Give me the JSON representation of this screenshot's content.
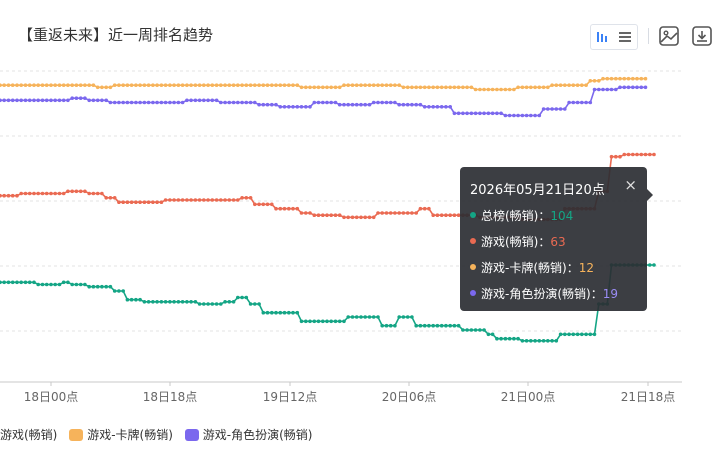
{
  "title": "【重返未来】近一周排名趋势",
  "toolbar": {
    "icons": [
      "bar-chart-icon",
      "list-icon",
      "image-icon",
      "download-icon"
    ]
  },
  "colors": {
    "zongbang": "#14a585",
    "youxi": "#ea6a52",
    "kapai": "#f6b35b",
    "juese": "#7b68ee",
    "accent": "#3b82f6"
  },
  "tooltip": {
    "title": "2026年05月21日20点",
    "close": "×",
    "rows": [
      {
        "label": "总榜(畅销)：",
        "value": "104",
        "color": "#14a585"
      },
      {
        "label": "游戏(畅销)：",
        "value": "63",
        "color": "#ea6a52"
      },
      {
        "label": "游戏-卡牌(畅销)：",
        "value": "12",
        "color": "#f6b35b"
      },
      {
        "label": "游戏-角色扮演(畅销)：",
        "value": "19",
        "color": "#7b68ee"
      }
    ]
  },
  "legend": [
    {
      "label": "游戏(畅销)",
      "color": "#ea6a52"
    },
    {
      "label": "游戏-卡牌(畅销)",
      "color": "#f6b35b"
    },
    {
      "label": "游戏-角色扮演(畅销)",
      "color": "#7b68ee"
    }
  ],
  "chart_data": {
    "type": "line",
    "x_ticks": [
      "18日00点",
      "18日18点",
      "19日12点",
      "20日06点",
      "21日00点",
      "21日18点"
    ],
    "y_inverted": true,
    "ylim": [
      0,
      150
    ],
    "grid": true,
    "legend_position": "bottom",
    "series": [
      {
        "name": "总榜(畅销)",
        "color": "#14a585",
        "values": [
          104,
          104,
          104,
          104,
          104,
          104,
          104,
          104,
          104,
          105,
          105,
          105,
          105,
          105,
          105,
          104,
          104,
          105,
          105,
          105,
          105,
          106,
          106,
          106,
          106,
          106,
          106,
          108,
          108,
          108,
          112,
          112,
          112,
          112,
          113,
          113,
          113,
          113,
          113,
          113,
          113,
          113,
          113,
          113,
          113,
          113,
          113,
          114,
          114,
          114,
          114,
          114,
          114,
          113,
          113,
          113,
          111,
          111,
          111,
          114,
          114,
          114,
          118,
          118,
          118,
          118,
          118,
          118,
          118,
          118,
          118,
          122,
          122,
          122,
          122,
          122,
          122,
          122,
          122,
          122,
          122,
          122,
          120,
          120,
          120,
          120,
          120,
          120,
          120,
          120,
          124,
          124,
          124,
          124,
          120,
          120,
          120,
          120,
          124,
          124,
          124,
          124,
          124,
          124,
          124,
          124,
          124,
          124,
          124,
          126,
          126,
          126,
          126,
          126,
          126,
          128,
          128,
          130,
          130,
          130,
          130,
          130,
          130,
          131,
          131,
          131,
          131,
          131,
          131,
          131,
          131,
          131,
          128,
          128,
          128,
          128,
          128,
          128,
          128,
          128,
          128,
          114,
          114,
          114,
          96,
          96,
          96,
          96,
          96,
          96,
          96,
          96,
          96,
          96,
          96
        ]
      },
      {
        "name": "游戏(畅销)",
        "color": "#ea6a52",
        "values": [
          64,
          64,
          64,
          64,
          64,
          63,
          63,
          63,
          63,
          63,
          63,
          63,
          63,
          63,
          63,
          63,
          62,
          62,
          62,
          62,
          62,
          63,
          63,
          63,
          63,
          65,
          65,
          65,
          67,
          67,
          67,
          67,
          67,
          67,
          67,
          67,
          67,
          67,
          67,
          66,
          66,
          66,
          66,
          66,
          66,
          66,
          66,
          66,
          66,
          66,
          66,
          66,
          66,
          66,
          66,
          66,
          66,
          65,
          65,
          65,
          68,
          68,
          68,
          68,
          68,
          70,
          70,
          70,
          70,
          70,
          70,
          72,
          72,
          72,
          73,
          73,
          73,
          73,
          73,
          73,
          73,
          74,
          74,
          74,
          74,
          74,
          74,
          74,
          74,
          72,
          72,
          72,
          72,
          72,
          72,
          72,
          72,
          72,
          72,
          70,
          70,
          70,
          73,
          73,
          73,
          73,
          73,
          73,
          73,
          73,
          73,
          73,
          73,
          74,
          74,
          74,
          74,
          74,
          74,
          74,
          74,
          74,
          74,
          75,
          75,
          75,
          75,
          75,
          75,
          75,
          75,
          75,
          75,
          70,
          70,
          70,
          70,
          70,
          70,
          70,
          70,
          62,
          62,
          62,
          46,
          46,
          46,
          45,
          45,
          45,
          45,
          45,
          45,
          45,
          45
        ]
      },
      {
        "name": "游戏-卡牌(畅销)",
        "color": "#f6b35b",
        "values": [
          13,
          13,
          13,
          13,
          13,
          13,
          13,
          13,
          13,
          13,
          13,
          13,
          13,
          13,
          13,
          13,
          13,
          13,
          13,
          13,
          13,
          13,
          13,
          14,
          14,
          14,
          14,
          13,
          13,
          13,
          13,
          13,
          13,
          13,
          13,
          13,
          13,
          13,
          13,
          13,
          13,
          13,
          13,
          13,
          13,
          13,
          13,
          13,
          13,
          13,
          13,
          13,
          13,
          13,
          13,
          13,
          13,
          13,
          13,
          13,
          13,
          13,
          13,
          13,
          13,
          13,
          13,
          13,
          13,
          13,
          13,
          14,
          14,
          14,
          14,
          14,
          14,
          14,
          14,
          14,
          14,
          13,
          13,
          13,
          13,
          13,
          13,
          13,
          13,
          13,
          13,
          13,
          13,
          13,
          13,
          14,
          14,
          14,
          14,
          14,
          14,
          14,
          14,
          14,
          14,
          14,
          14,
          14,
          14,
          14,
          14,
          14,
          15,
          15,
          15,
          15,
          15,
          15,
          15,
          15,
          15,
          15,
          14,
          14,
          14,
          14,
          14,
          14,
          14,
          14,
          13,
          13,
          13,
          13,
          13,
          13,
          13,
          13,
          13,
          11,
          11,
          11,
          10,
          10,
          10,
          10,
          10,
          10,
          10,
          10,
          10,
          10,
          10
        ]
      },
      {
        "name": "游戏-角色扮演(畅销)",
        "color": "#7b68ee",
        "values": [
          20,
          20,
          20,
          20,
          20,
          20,
          20,
          20,
          20,
          20,
          20,
          20,
          20,
          20,
          20,
          20,
          20,
          19,
          19,
          19,
          19,
          20,
          20,
          20,
          20,
          20,
          21,
          21,
          21,
          21,
          21,
          21,
          21,
          21,
          21,
          21,
          21,
          21,
          21,
          21,
          21,
          21,
          21,
          21,
          20,
          20,
          20,
          20,
          20,
          20,
          20,
          20,
          21,
          21,
          21,
          21,
          21,
          21,
          21,
          21,
          21,
          22,
          22,
          22,
          22,
          22,
          23,
          23,
          23,
          23,
          23,
          23,
          23,
          23,
          21,
          21,
          21,
          21,
          21,
          21,
          22,
          22,
          22,
          22,
          22,
          22,
          22,
          22,
          21,
          21,
          21,
          21,
          21,
          21,
          22,
          22,
          22,
          22,
          22,
          22,
          23,
          23,
          23,
          23,
          23,
          23,
          23,
          26,
          26,
          26,
          26,
          26,
          26,
          26,
          26,
          26,
          26,
          26,
          26,
          27,
          27,
          27,
          27,
          27,
          27,
          27,
          27,
          27,
          24,
          24,
          24,
          24,
          24,
          24,
          21,
          21,
          21,
          21,
          21,
          21,
          15,
          15,
          15,
          15,
          15,
          15,
          14,
          14,
          14,
          14,
          14,
          14,
          14
        ]
      }
    ]
  }
}
